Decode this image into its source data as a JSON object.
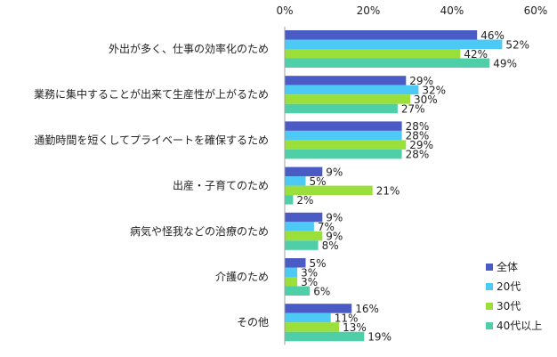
{
  "chart_data": {
    "type": "bar",
    "orientation": "horizontal",
    "title": "",
    "xlabel": "",
    "ylabel": "",
    "xlim": [
      0,
      60
    ],
    "x_ticks": [
      "0%",
      "20%",
      "40%",
      "60%"
    ],
    "grid": false,
    "legend_position": "bottom-right",
    "categories": [
      "外出が多く、仕事の効率化のため",
      "業務に集中することが出来て生産性が上がるため",
      "通勤時間を短くしてプライベートを確保するため",
      "出産・子育てのため",
      "病気や怪我などの治療のため",
      "介護のため",
      "その他"
    ],
    "series": [
      {
        "name": "全体",
        "color": "#4a5bc6",
        "values": [
          46,
          29,
          28,
          9,
          9,
          5,
          16
        ]
      },
      {
        "name": "20代",
        "color": "#4cc9f5",
        "values": [
          52,
          32,
          28,
          5,
          7,
          3,
          11
        ]
      },
      {
        "name": "30代",
        "color": "#9be03a",
        "values": [
          42,
          30,
          29,
          21,
          9,
          3,
          13
        ]
      },
      {
        "name": "40代以上",
        "color": "#4fcfa8",
        "values": [
          49,
          27,
          28,
          2,
          8,
          6,
          19
        ]
      }
    ]
  }
}
